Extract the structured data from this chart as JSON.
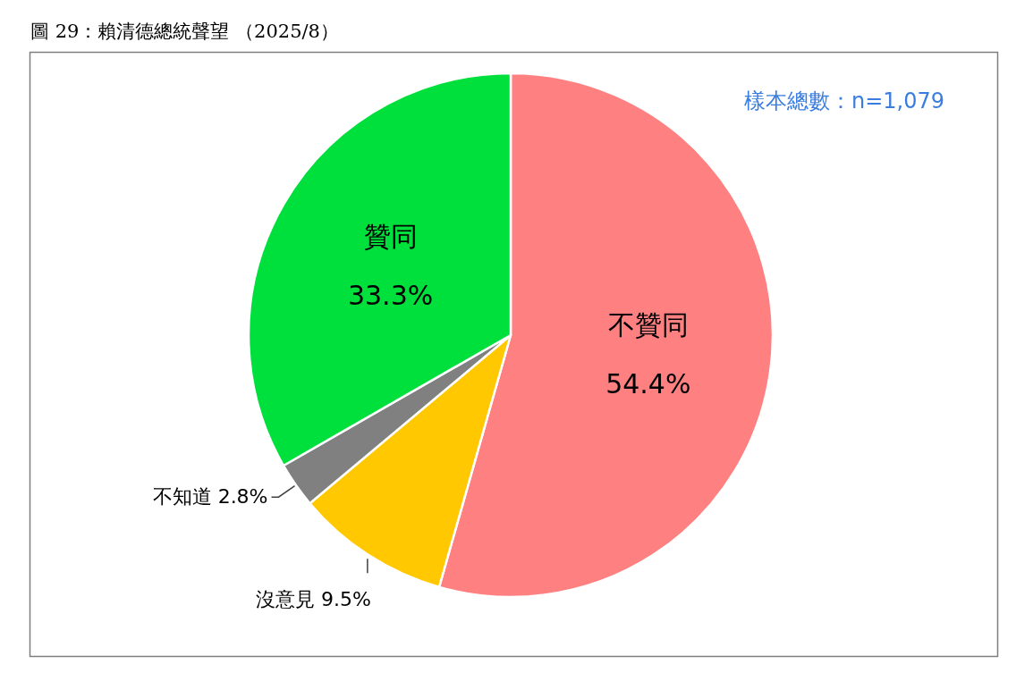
{
  "chart_data": {
    "type": "pie",
    "title": "圖 29：賴清德總統聲望 （2025/8）",
    "annotations": [
      "樣本總數：n=1,079"
    ],
    "categories": [
      "不贊同",
      "沒意見",
      "不知道",
      "贊同"
    ],
    "values": [
      54.4,
      9.5,
      2.8,
      33.3
    ],
    "value_labels": [
      "54.4%",
      "9.5%",
      "2.8%",
      "33.3%"
    ],
    "colors": [
      "#ff8080",
      "#ffc800",
      "#808080",
      "#00e03c"
    ]
  }
}
